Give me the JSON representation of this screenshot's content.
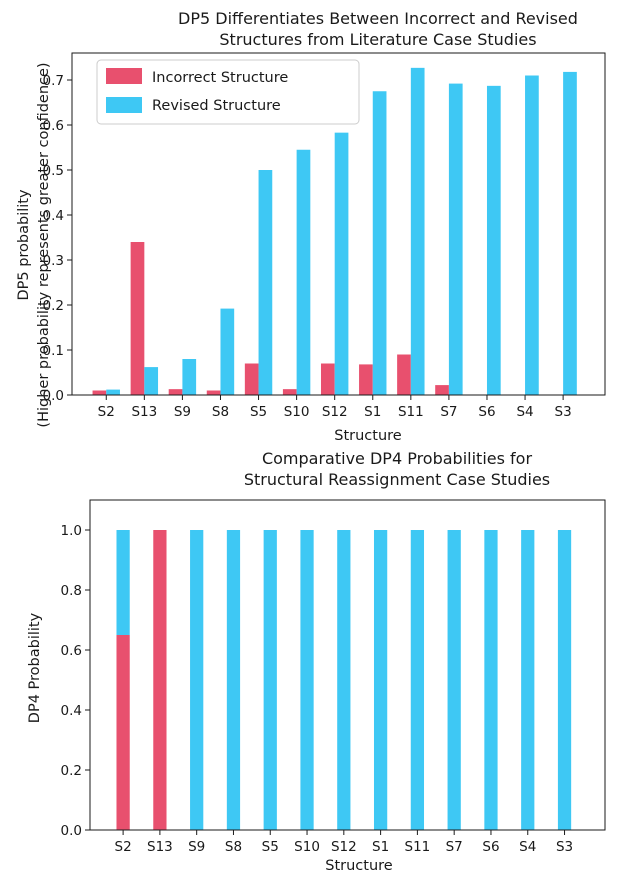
{
  "colors": {
    "incorrect": "#e8506e",
    "revised": "#3ec8f4",
    "axis": "#1a1a1a",
    "legend_border": "#cccccc"
  },
  "chart_data": [
    {
      "type": "bar",
      "title_lines": [
        "DP5 Differentiates Between Incorrect and Revised",
        "Structures from Literature Case Studies"
      ],
      "xlabel": "Structure",
      "ylabel_lines": [
        "DP5 probability",
        "(Higher probability represents greater confidence)"
      ],
      "ylim": [
        0,
        0.76
      ],
      "yticks": [
        0.0,
        0.1,
        0.2,
        0.3,
        0.4,
        0.5,
        0.6,
        0.7
      ],
      "ytick_labels": [
        "0.0",
        "0.1",
        "0.2",
        "0.3",
        "0.4",
        "0.5",
        "0.6",
        "0.7"
      ],
      "grid": false,
      "legend": {
        "placement": "top-left",
        "entries": [
          "Incorrect Structure",
          "Revised Structure"
        ]
      },
      "categories": [
        "S2",
        "S13",
        "S9",
        "S8",
        "S5",
        "S10",
        "S12",
        "S1",
        "S11",
        "S7",
        "S6",
        "S4",
        "S3"
      ],
      "series": [
        {
          "name": "Incorrect Structure",
          "values": [
            0.01,
            0.34,
            0.013,
            0.01,
            0.07,
            0.013,
            0.07,
            0.068,
            0.09,
            0.022,
            0.0,
            0.0,
            0.0
          ]
        },
        {
          "name": "Revised Structure",
          "values": [
            0.012,
            0.062,
            0.08,
            0.192,
            0.5,
            0.545,
            0.583,
            0.675,
            0.727,
            0.692,
            0.687,
            0.71,
            0.718
          ]
        }
      ]
    },
    {
      "type": "bar",
      "stacked": true,
      "title_lines": [
        "Comparative DP4 Probabilities for",
        "Structural Reassignment Case Studies"
      ],
      "xlabel": "Structure",
      "ylabel_lines": [
        "DP4 Probability"
      ],
      "ylim": [
        0,
        1.1
      ],
      "yticks": [
        0.0,
        0.2,
        0.4,
        0.6,
        0.8,
        1.0
      ],
      "ytick_labels": [
        "0.0",
        "0.2",
        "0.4",
        "0.6",
        "0.8",
        "1.0"
      ],
      "grid": false,
      "categories": [
        "S2",
        "S13",
        "S9",
        "S8",
        "S5",
        "S10",
        "S12",
        "S1",
        "S11",
        "S7",
        "S6",
        "S4",
        "S3"
      ],
      "series": [
        {
          "name": "Incorrect Structure",
          "values": [
            0.65,
            1.0,
            0,
            0,
            0,
            0,
            0,
            0,
            0,
            0,
            0,
            0,
            0
          ]
        },
        {
          "name": "Revised Structure",
          "values": [
            0.35,
            0.0,
            1.0,
            1.0,
            1.0,
            1.0,
            1.0,
            1.0,
            1.0,
            1.0,
            1.0,
            1.0,
            1.0
          ]
        }
      ]
    }
  ]
}
